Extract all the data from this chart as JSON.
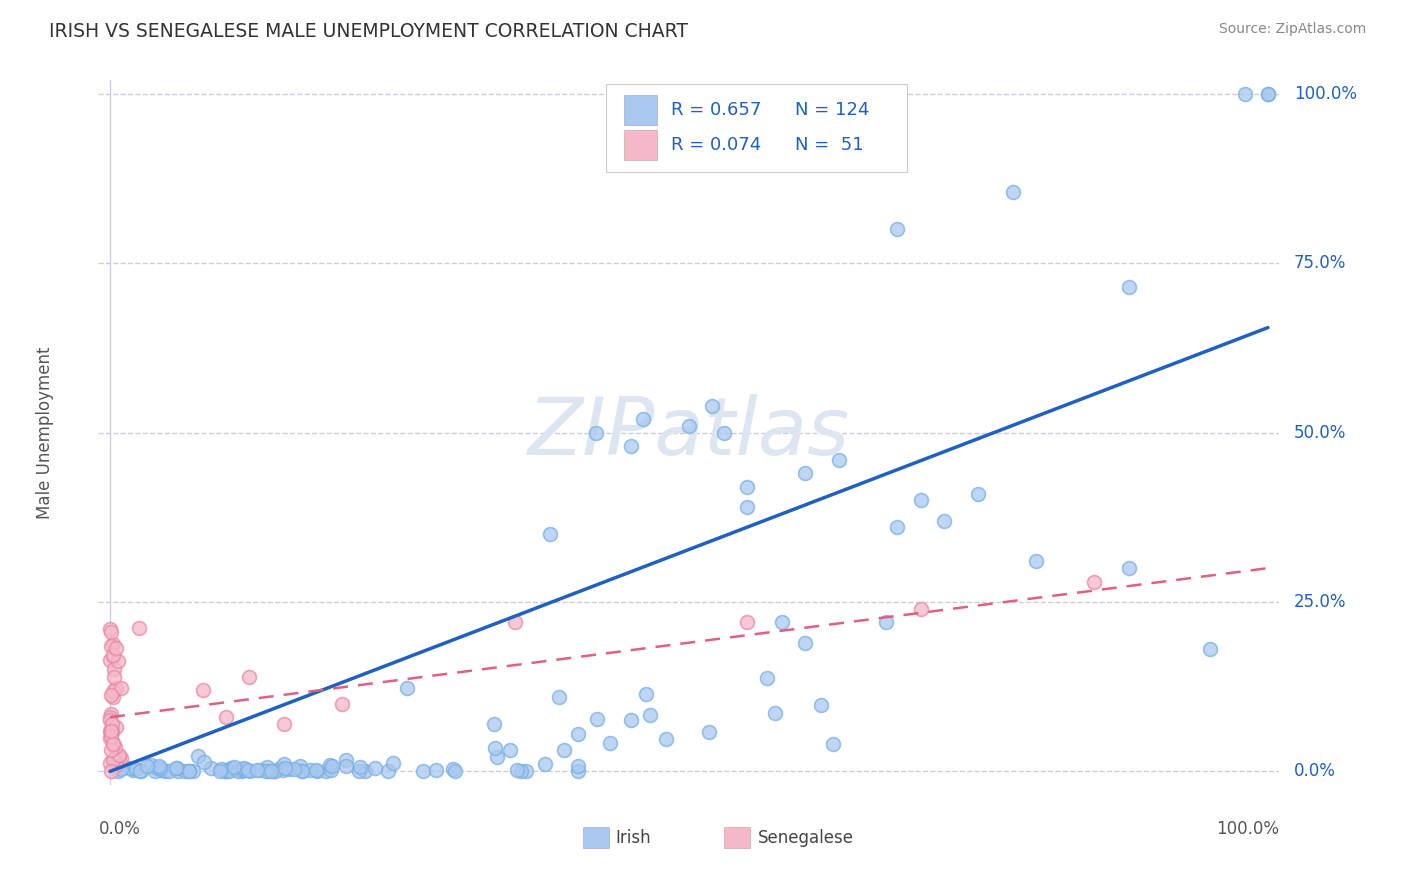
{
  "title": "IRISH VS SENEGALESE MALE UNEMPLOYMENT CORRELATION CHART",
  "source": "Source: ZipAtlas.com",
  "ylabel": "Male Unemployment",
  "irish_R": 0.657,
  "irish_N": 124,
  "senegalese_R": 0.074,
  "senegalese_N": 51,
  "irish_scatter_color": "#a8c8f0",
  "irish_edge_color": "#7ab0e0",
  "senegalese_scatter_color": "#f5b8c8",
  "senegalese_edge_color": "#e888a8",
  "irish_line_color": "#2060c0",
  "senegalese_line_color": "#e06080",
  "watermark_color": "#dde5f0",
  "background_color": "#ffffff",
  "grid_color": "#ccccdd",
  "ytick_labels": [
    "0.0%",
    "25.0%",
    "50.0%",
    "75.0%",
    "100.0%"
  ],
  "ytick_values": [
    0.0,
    0.25,
    0.5,
    0.75,
    1.0
  ],
  "xtick_labels": [
    "0.0%",
    "100.0%"
  ],
  "xlim": [
    -0.01,
    1.01
  ],
  "ylim": [
    -0.02,
    1.02
  ],
  "irish_line_x0": 0.0,
  "irish_line_y0": 0.0,
  "irish_line_x1": 1.0,
  "irish_line_y1": 0.655,
  "sen_line_x0": 0.0,
  "sen_line_y0": 0.08,
  "sen_line_x1": 1.0,
  "sen_line_y1": 0.3,
  "marker_size": 100,
  "marker_lw": 1.2
}
